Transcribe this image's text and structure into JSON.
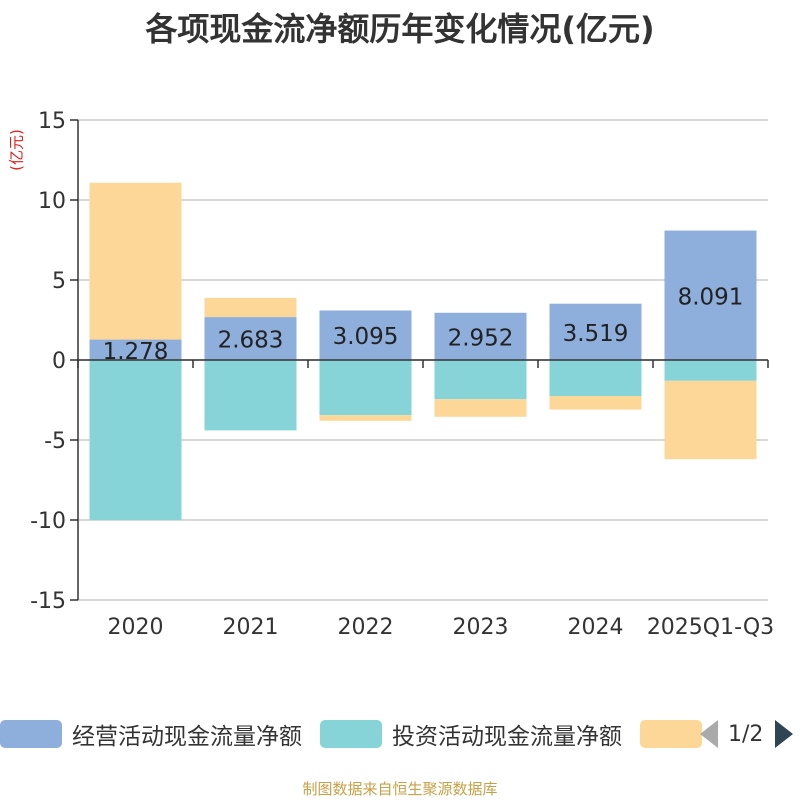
{
  "chart_data": {
    "type": "bar",
    "stacked": true,
    "title": "各项现金流净额历年变化情况(亿元)",
    "ylabel": "(亿元)",
    "ylim": [
      -15,
      15
    ],
    "yticks": [
      15,
      10,
      5,
      0,
      -5,
      -10,
      -15
    ],
    "categories": [
      "2020",
      "2021",
      "2022",
      "2023",
      "2024",
      "2025Q1-Q3"
    ],
    "series": [
      {
        "name": "经营活动现金流量净额",
        "color": "#8eaedc",
        "values": [
          1.278,
          2.683,
          3.095,
          2.952,
          3.519,
          8.091
        ],
        "labels": [
          "1.278",
          "2.683",
          "3.095",
          "2.952",
          "3.519",
          "8.091"
        ]
      },
      {
        "name": "投资活动现金流量净额",
        "color": "#86d4d8",
        "values": [
          -10.0,
          -4.4,
          -3.45,
          -2.45,
          -2.25,
          -1.3
        ]
      },
      {
        "name": "",
        "color": "#fdd797",
        "values": [
          9.8,
          1.2,
          -0.35,
          -1.1,
          -0.85,
          -4.9
        ]
      }
    ]
  },
  "legend": {
    "items": [
      {
        "label": "经营活动现金流量净额",
        "color": "#8eaedc"
      },
      {
        "label": "投资活动现金流量净额",
        "color": "#86d4d8"
      },
      {
        "label": "",
        "color": "#fdd797"
      }
    ],
    "pager": "1/2"
  },
  "source": "制图数据来自恒生聚源数据库"
}
